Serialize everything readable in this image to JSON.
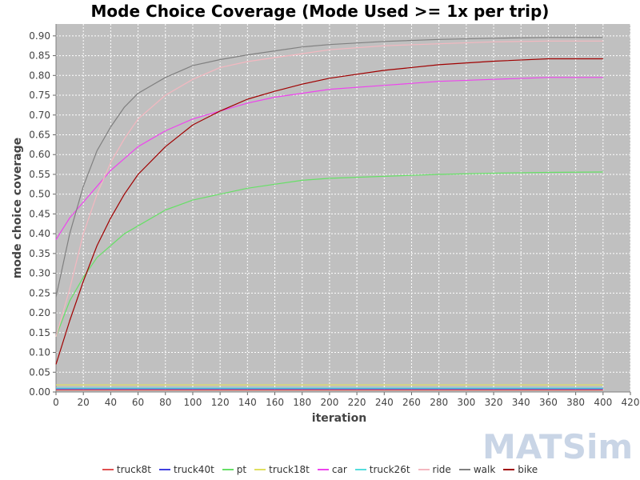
{
  "chart_data": {
    "type": "line",
    "title": "Mode Choice Coverage (Mode Used >= 1x per trip)",
    "xlabel": "iteration",
    "ylabel": "mode choice coverage",
    "xlim": [
      0,
      420
    ],
    "ylim": [
      0,
      0.93
    ],
    "xticks": [
      "0",
      "20",
      "40",
      "60",
      "80",
      "100",
      "120",
      "140",
      "160",
      "180",
      "200",
      "220",
      "240",
      "260",
      "280",
      "300",
      "320",
      "340",
      "360",
      "380",
      "400",
      "420"
    ],
    "yticks": [
      "0.00",
      "0.05",
      "0.10",
      "0.15",
      "0.20",
      "0.25",
      "0.30",
      "0.35",
      "0.40",
      "0.45",
      "0.50",
      "0.55",
      "0.60",
      "0.65",
      "0.70",
      "0.75",
      "0.80",
      "0.85",
      "0.90"
    ],
    "grid": true,
    "legend_position": "bottom",
    "background": "#c0c0c0",
    "x": [
      0,
      10,
      20,
      30,
      40,
      50,
      60,
      80,
      100,
      120,
      140,
      160,
      180,
      200,
      240,
      280,
      320,
      360,
      400
    ],
    "series": [
      {
        "name": "truck8t",
        "color": "#e05050",
        "values": [
          0.005,
          0.005,
          0.005,
          0.005,
          0.005,
          0.005,
          0.005,
          0.005,
          0.005,
          0.005,
          0.005,
          0.005,
          0.005,
          0.005,
          0.005,
          0.005,
          0.005,
          0.005,
          0.005
        ]
      },
      {
        "name": "truck40t",
        "color": "#4040e0",
        "values": [
          0.008,
          0.008,
          0.008,
          0.008,
          0.008,
          0.008,
          0.008,
          0.008,
          0.008,
          0.008,
          0.008,
          0.008,
          0.008,
          0.008,
          0.008,
          0.008,
          0.008,
          0.008,
          0.008
        ]
      },
      {
        "name": "pt",
        "color": "#66e066",
        "values": [
          0.14,
          0.23,
          0.29,
          0.34,
          0.37,
          0.4,
          0.42,
          0.46,
          0.485,
          0.5,
          0.515,
          0.525,
          0.535,
          0.54,
          0.545,
          0.55,
          0.553,
          0.555,
          0.556
        ]
      },
      {
        "name": "truck18t",
        "color": "#e0e060",
        "values": [
          0.018,
          0.018,
          0.018,
          0.018,
          0.018,
          0.018,
          0.018,
          0.018,
          0.018,
          0.018,
          0.018,
          0.018,
          0.018,
          0.018,
          0.018,
          0.018,
          0.018,
          0.018,
          0.018
        ]
      },
      {
        "name": "car",
        "color": "#ee44ee",
        "values": [
          0.385,
          0.44,
          0.48,
          0.52,
          0.56,
          0.59,
          0.62,
          0.66,
          0.69,
          0.71,
          0.73,
          0.745,
          0.755,
          0.765,
          0.775,
          0.785,
          0.79,
          0.795,
          0.795
        ]
      },
      {
        "name": "truck26t",
        "color": "#55dddd",
        "values": [
          0.01,
          0.01,
          0.01,
          0.01,
          0.01,
          0.01,
          0.01,
          0.01,
          0.01,
          0.01,
          0.01,
          0.01,
          0.01,
          0.01,
          0.01,
          0.01,
          0.01,
          0.01,
          0.01
        ]
      },
      {
        "name": "ride",
        "color": "#f4b8c0",
        "values": [
          0.14,
          0.26,
          0.4,
          0.5,
          0.58,
          0.64,
          0.69,
          0.75,
          0.79,
          0.82,
          0.835,
          0.845,
          0.855,
          0.865,
          0.875,
          0.88,
          0.885,
          0.887,
          0.887
        ]
      },
      {
        "name": "walk",
        "color": "#808080",
        "values": [
          0.24,
          0.4,
          0.52,
          0.61,
          0.67,
          0.72,
          0.755,
          0.795,
          0.825,
          0.84,
          0.852,
          0.862,
          0.872,
          0.878,
          0.886,
          0.891,
          0.894,
          0.896,
          0.896
        ]
      },
      {
        "name": "bike",
        "color": "#a00000",
        "values": [
          0.07,
          0.18,
          0.28,
          0.37,
          0.44,
          0.5,
          0.55,
          0.62,
          0.675,
          0.71,
          0.74,
          0.76,
          0.778,
          0.793,
          0.813,
          0.827,
          0.836,
          0.842,
          0.842
        ]
      }
    ],
    "watermark": "MATSim"
  }
}
